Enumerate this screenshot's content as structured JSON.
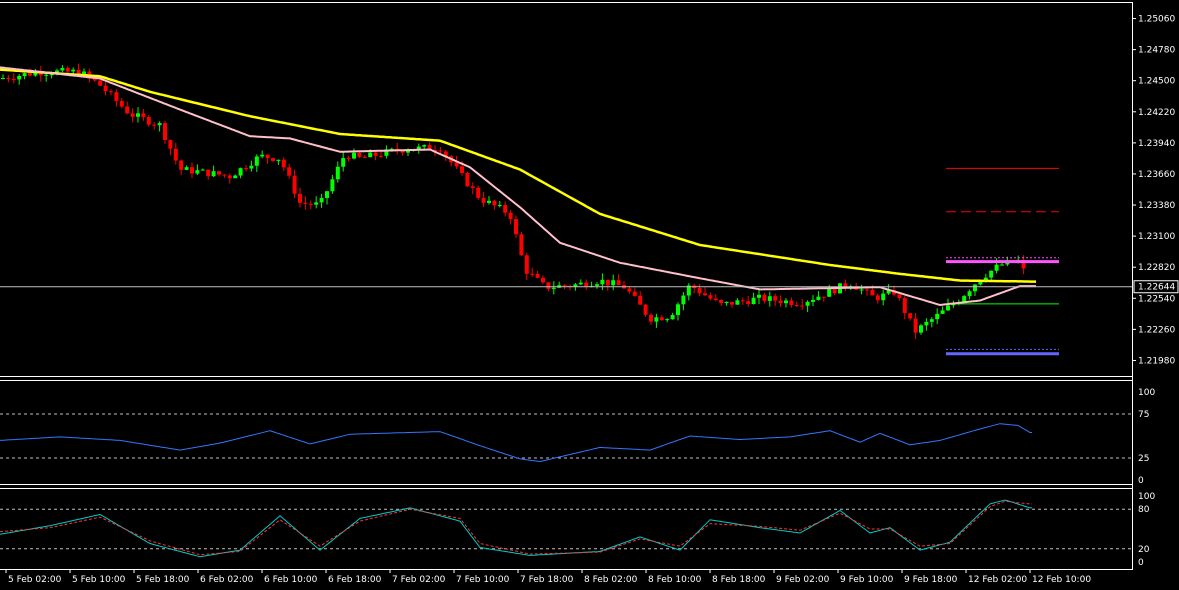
{
  "chart_data": [
    {
      "type": "candlestick",
      "title": "",
      "ylim": [
        1.2184,
        1.252
      ],
      "price_ticks": [
        "1.25060",
        "1.24780",
        "1.24500",
        "1.24220",
        "1.23940",
        "1.23660",
        "1.23380",
        "1.23100",
        "1.22820",
        "1.22540",
        "1.22260",
        "1.21980"
      ],
      "current_price": "1.22644",
      "colors": {
        "bull": "#00ff00",
        "bear": "#ff0000",
        "ma_slow": "#ffff00",
        "ma_fast": "#ffc0cb",
        "current_line": "#c0c0c0"
      },
      "ma_slow_anchors": [
        [
          0,
          1.246
        ],
        [
          100,
          1.2454
        ],
        [
          150,
          1.244
        ],
        [
          250,
          1.2418
        ],
        [
          340,
          1.2402
        ],
        [
          440,
          1.2396
        ],
        [
          520,
          1.237
        ],
        [
          600,
          1.233
        ],
        [
          700,
          1.2302
        ],
        [
          830,
          1.2284
        ],
        [
          900,
          1.2276
        ],
        [
          960,
          1.227
        ],
        [
          1036,
          1.2269
        ]
      ],
      "ma_fast_anchors": [
        [
          0,
          1.2462
        ],
        [
          100,
          1.2452
        ],
        [
          180,
          1.2424
        ],
        [
          250,
          1.24
        ],
        [
          290,
          1.2398
        ],
        [
          340,
          1.2386
        ],
        [
          430,
          1.2388
        ],
        [
          470,
          1.2372
        ],
        [
          520,
          1.2336
        ],
        [
          560,
          1.2304
        ],
        [
          620,
          1.2286
        ],
        [
          700,
          1.2272
        ],
        [
          760,
          1.2262
        ],
        [
          880,
          1.2264
        ],
        [
          940,
          1.2248
        ],
        [
          980,
          1.2252
        ],
        [
          1020,
          1.2265
        ],
        [
          1036,
          1.2265
        ]
      ],
      "price_path_anchors": [
        [
          0,
          1.2452
        ],
        [
          40,
          1.2458
        ],
        [
          80,
          1.2458
        ],
        [
          100,
          1.2446
        ],
        [
          130,
          1.242
        ],
        [
          160,
          1.241
        ],
        [
          180,
          1.237
        ],
        [
          200,
          1.2368
        ],
        [
          230,
          1.2364
        ],
        [
          260,
          1.2382
        ],
        [
          280,
          1.238
        ],
        [
          300,
          1.234
        ],
        [
          320,
          1.2338
        ],
        [
          345,
          1.2384
        ],
        [
          360,
          1.238
        ],
        [
          400,
          1.2388
        ],
        [
          440,
          1.239
        ],
        [
          460,
          1.2366
        ],
        [
          480,
          1.2344
        ],
        [
          510,
          1.233
        ],
        [
          525,
          1.228
        ],
        [
          545,
          1.2264
        ],
        [
          575,
          1.2266
        ],
        [
          600,
          1.227
        ],
        [
          625,
          1.2264
        ],
        [
          650,
          1.2236
        ],
        [
          670,
          1.2238
        ],
        [
          690,
          1.2266
        ],
        [
          720,
          1.2248
        ],
        [
          760,
          1.2254
        ],
        [
          800,
          1.225
        ],
        [
          830,
          1.226
        ],
        [
          850,
          1.2268
        ],
        [
          875,
          1.2254
        ],
        [
          895,
          1.226
        ],
        [
          915,
          1.2224
        ],
        [
          940,
          1.224
        ],
        [
          960,
          1.2254
        ],
        [
          980,
          1.2272
        ],
        [
          1000,
          1.2284
        ],
        [
          1020,
          1.2288
        ],
        [
          1028,
          1.2268
        ]
      ],
      "level_lines": [
        {
          "price": 1.2371,
          "color": "#ff0000",
          "style": "solid"
        },
        {
          "price": 1.2332,
          "color": "#ff0000",
          "style": "dash"
        },
        {
          "price": 1.22905,
          "color": "#ff44ff",
          "style": "dot"
        },
        {
          "price": 1.2287,
          "color": "#ff55ff",
          "style": "thick"
        },
        {
          "price": 1.2249,
          "color": "#00ff00",
          "style": "solid"
        },
        {
          "price": 1.2208,
          "color": "#6666ff",
          "style": "dot"
        },
        {
          "price": 1.2204,
          "color": "#6666ff",
          "style": "thick"
        }
      ]
    },
    {
      "type": "line",
      "ylim": [
        0,
        100
      ],
      "levels": [
        75,
        25
      ],
      "tick_labels": [
        "100",
        "75",
        "25",
        "0"
      ],
      "series": [
        {
          "color": "#3377ff",
          "anchors": [
            [
              0,
              45
            ],
            [
              60,
              49
            ],
            [
              120,
              45
            ],
            [
              180,
              34
            ],
            [
              220,
              42
            ],
            [
              270,
              56
            ],
            [
              310,
              41
            ],
            [
              350,
              52
            ],
            [
              440,
              55
            ],
            [
              480,
              39
            ],
            [
              520,
              24
            ],
            [
              540,
              21
            ],
            [
              600,
              37
            ],
            [
              650,
              34
            ],
            [
              690,
              50
            ],
            [
              740,
              46
            ],
            [
              790,
              49
            ],
            [
              830,
              56
            ],
            [
              860,
              43
            ],
            [
              880,
              53
            ],
            [
              910,
              40
            ],
            [
              940,
              45
            ],
            [
              980,
              58
            ],
            [
              1000,
              64
            ],
            [
              1018,
              62
            ],
            [
              1030,
              54
            ]
          ]
        }
      ]
    },
    {
      "type": "line",
      "ylim": [
        0,
        100
      ],
      "levels": [
        80,
        20
      ],
      "tick_labels": [
        "100",
        "80",
        "20",
        "0"
      ],
      "series": [
        {
          "color": "#00cccc",
          "anchors": [
            [
              0,
              42
            ],
            [
              50,
              55
            ],
            [
              100,
              72
            ],
            [
              150,
              28
            ],
            [
              200,
              8
            ],
            [
              240,
              18
            ],
            [
              280,
              70
            ],
            [
              320,
              18
            ],
            [
              360,
              66
            ],
            [
              410,
              82
            ],
            [
              460,
              62
            ],
            [
              480,
              22
            ],
            [
              530,
              10
            ],
            [
              600,
              16
            ],
            [
              640,
              38
            ],
            [
              680,
              18
            ],
            [
              710,
              64
            ],
            [
              760,
              52
            ],
            [
              800,
              44
            ],
            [
              840,
              78
            ],
            [
              870,
              44
            ],
            [
              890,
              52
            ],
            [
              920,
              18
            ],
            [
              950,
              30
            ],
            [
              990,
              88
            ],
            [
              1005,
              94
            ],
            [
              1030,
              82
            ]
          ]
        },
        {
          "color": "#ff3333",
          "anchors": [
            [
              0,
              46
            ],
            [
              50,
              52
            ],
            [
              100,
              68
            ],
            [
              150,
              32
            ],
            [
              200,
              11
            ],
            [
              240,
              16
            ],
            [
              280,
              64
            ],
            [
              320,
              24
            ],
            [
              360,
              62
            ],
            [
              410,
              80
            ],
            [
              460,
              66
            ],
            [
              480,
              28
            ],
            [
              530,
              12
            ],
            [
              600,
              15
            ],
            [
              640,
              35
            ],
            [
              680,
              24
            ],
            [
              710,
              58
            ],
            [
              760,
              54
            ],
            [
              800,
              48
            ],
            [
              840,
              74
            ],
            [
              870,
              50
            ],
            [
              890,
              50
            ],
            [
              920,
              24
            ],
            [
              950,
              28
            ],
            [
              990,
              84
            ],
            [
              1005,
              92
            ],
            [
              1030,
              88
            ]
          ]
        }
      ]
    }
  ],
  "x_axis": {
    "labels": [
      "5 Feb 02:00",
      "5 Feb 10:00",
      "5 Feb 18:00",
      "6 Feb 02:00",
      "6 Feb 10:00",
      "6 Feb 18:00",
      "7 Feb 02:00",
      "7 Feb 10:00",
      "7 Feb 18:00",
      "8 Feb 02:00",
      "8 Feb 10:00",
      "8 Feb 18:00",
      "9 Feb 02:00",
      "9 Feb 10:00",
      "9 Feb 18:00",
      "12 Feb 02:00",
      "12 Feb 10:00"
    ]
  }
}
